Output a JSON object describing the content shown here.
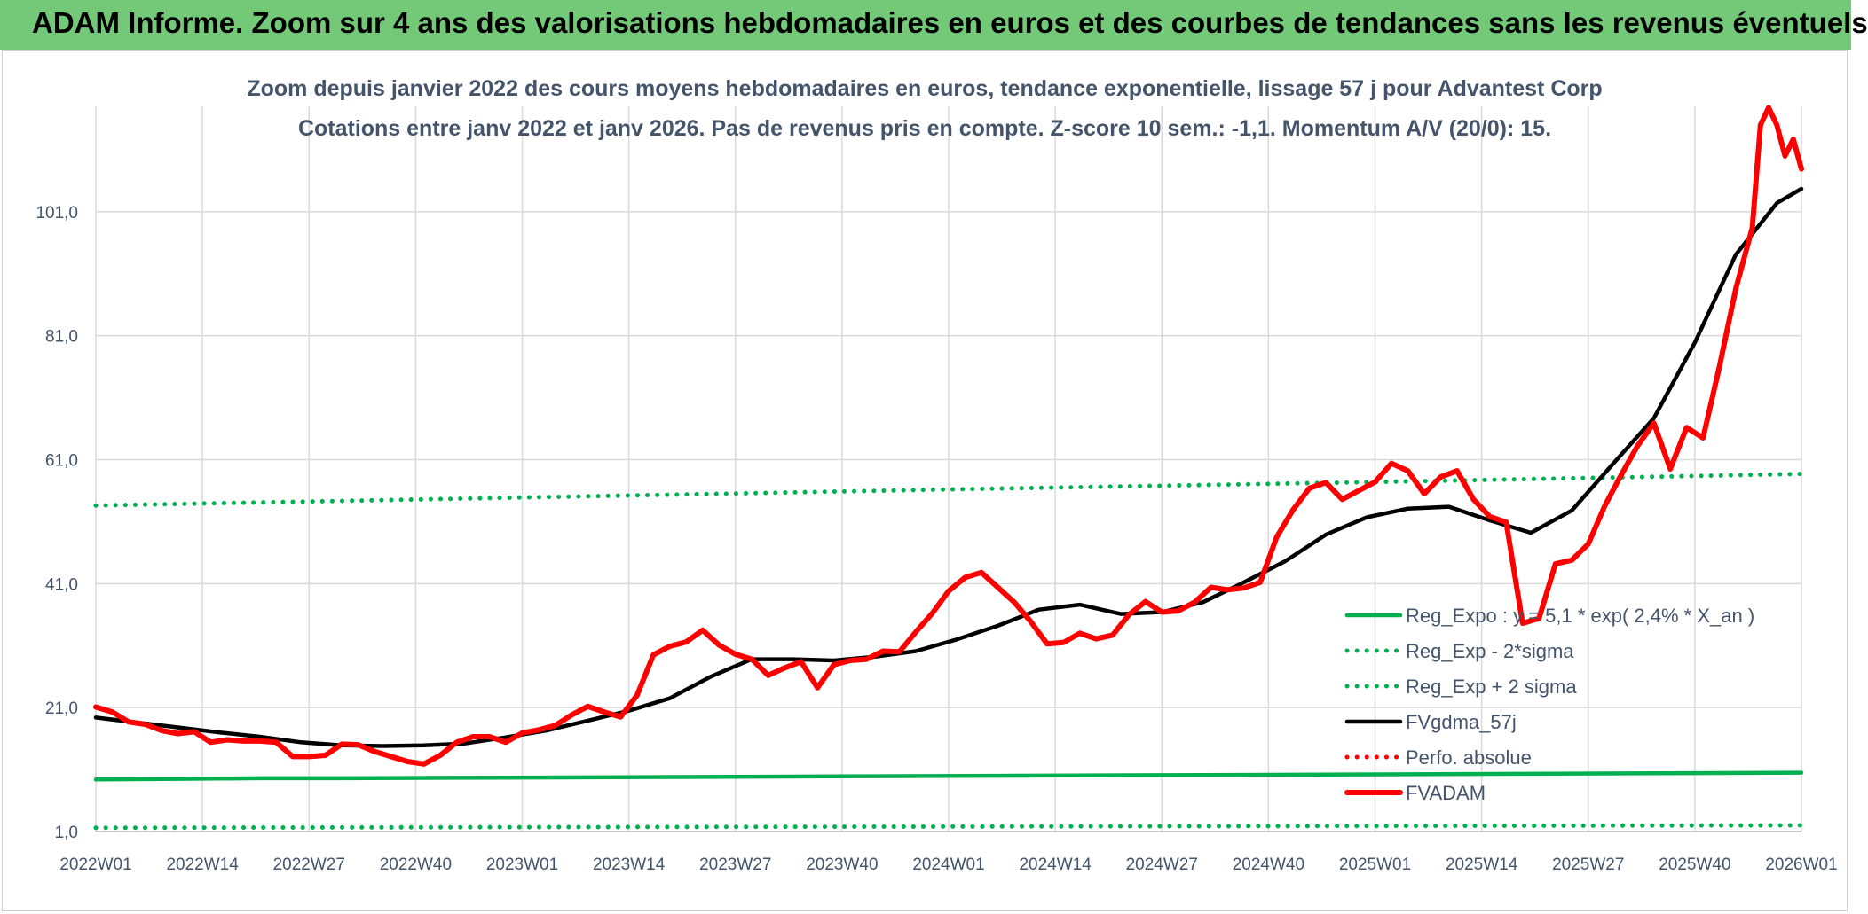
{
  "header": {
    "title": "ADAM Informe. Zoom sur 4 ans des valorisations hebdomadaires en euros et des courbes de tendances sans les revenus éventuels"
  },
  "chart_data": {
    "type": "line",
    "title": "Zoom depuis janvier 2022 des cours moyens hebdomadaires en euros, tendance exponentielle, lissage 57 j pour Advantest Corp",
    "subtitle": "Cotations entre janv 2022 et janv 2026. Pas de revenus pris en compte. Z-score 10 sem.: -1,1. Momentum A/V (20/0): 15.",
    "y_ticks": [
      "1,0",
      "21,0",
      "41,0",
      "61,0",
      "81,0",
      "101,0"
    ],
    "x_ticks": [
      "2022W01",
      "2022W14",
      "2022W27",
      "2022W40",
      "2023W01",
      "2023W14",
      "2023W27",
      "2023W40",
      "2024W01",
      "2024W14",
      "2024W27",
      "2024W40",
      "2025W01",
      "2025W14",
      "2025W27",
      "2025W40",
      "2026W01"
    ],
    "ylim": [
      1,
      118
    ],
    "grid": true,
    "legend_position": "lower-right",
    "series": [
      {
        "name": "Reg_Expo : y = 5,1 * exp( 2,4% *  X_an )",
        "color": "#00b050",
        "style": "solid",
        "points": [
          [
            0,
            9.4
          ],
          [
            10,
            9.5
          ],
          [
            20,
            9.6
          ],
          [
            30,
            9.6
          ],
          [
            50,
            9.7
          ],
          [
            70,
            9.8
          ],
          [
            90,
            9.9
          ],
          [
            110,
            10.0
          ],
          [
            130,
            10.1
          ],
          [
            150,
            10.2
          ],
          [
            170,
            10.3
          ],
          [
            190,
            10.4
          ],
          [
            208,
            10.5
          ]
        ]
      },
      {
        "name": "Reg_Exp - 2*sigma",
        "color": "#00b050",
        "style": "dotted",
        "points": [
          [
            0,
            1.6
          ],
          [
            52,
            1.7
          ],
          [
            104,
            1.8
          ],
          [
            156,
            1.9
          ],
          [
            208,
            2.0
          ]
        ]
      },
      {
        "name": "Reg_Exp + 2 sigma",
        "color": "#00b050",
        "style": "dotted",
        "points": [
          [
            0,
            53.6
          ],
          [
            52,
            54.9
          ],
          [
            104,
            56.2
          ],
          [
            156,
            57.4
          ],
          [
            208,
            58.7
          ]
        ]
      },
      {
        "name": "FVgdma_57j",
        "color": "#000000",
        "style": "solid",
        "points": [
          [
            0,
            19.4
          ],
          [
            5,
            18.6
          ],
          [
            10,
            17.8
          ],
          [
            15,
            17.0
          ],
          [
            20,
            16.3
          ],
          [
            25,
            15.4
          ],
          [
            30,
            14.9
          ],
          [
            35,
            14.8
          ],
          [
            40,
            14.9
          ],
          [
            45,
            15.2
          ],
          [
            50,
            16.2
          ],
          [
            55,
            17.3
          ],
          [
            60,
            18.9
          ],
          [
            65,
            20.5
          ],
          [
            70,
            22.5
          ],
          [
            75,
            26.0
          ],
          [
            80,
            28.8
          ],
          [
            85,
            28.8
          ],
          [
            90,
            28.6
          ],
          [
            95,
            29.2
          ],
          [
            100,
            30.1
          ],
          [
            105,
            32.0
          ],
          [
            110,
            34.2
          ],
          [
            115,
            36.8
          ],
          [
            120,
            37.6
          ],
          [
            125,
            36.1
          ],
          [
            130,
            36.4
          ],
          [
            135,
            38.0
          ],
          [
            140,
            41.2
          ],
          [
            145,
            44.6
          ],
          [
            150,
            48.9
          ],
          [
            155,
            51.7
          ],
          [
            160,
            53.1
          ],
          [
            165,
            53.4
          ],
          [
            170,
            51.2
          ],
          [
            175,
            49.2
          ],
          [
            180,
            52.8
          ],
          [
            185,
            60.3
          ],
          [
            190,
            67.7
          ],
          [
            195,
            79.9
          ],
          [
            200,
            94.1
          ],
          [
            205,
            102.4
          ],
          [
            208,
            104.7
          ]
        ]
      },
      {
        "name": "Perfo. absolue",
        "color": "#ff0000",
        "style": "dotted",
        "points": []
      },
      {
        "name": "FVADAM",
        "color": "#ff0000",
        "style": "solid",
        "points": [
          [
            0,
            21.1
          ],
          [
            2,
            20.3
          ],
          [
            4,
            18.7
          ],
          [
            6,
            18.3
          ],
          [
            8,
            17.3
          ],
          [
            10,
            16.8
          ],
          [
            12,
            17.1
          ],
          [
            14,
            15.4
          ],
          [
            16,
            15.8
          ],
          [
            18,
            15.6
          ],
          [
            20,
            15.6
          ],
          [
            22,
            15.4
          ],
          [
            24,
            13.1
          ],
          [
            26,
            13.1
          ],
          [
            28,
            13.3
          ],
          [
            30,
            15.1
          ],
          [
            32,
            15.0
          ],
          [
            34,
            13.9
          ],
          [
            36,
            13.1
          ],
          [
            38,
            12.3
          ],
          [
            40,
            11.9
          ],
          [
            42,
            13.3
          ],
          [
            44,
            15.4
          ],
          [
            46,
            16.3
          ],
          [
            48,
            16.3
          ],
          [
            50,
            15.4
          ],
          [
            52,
            16.9
          ],
          [
            54,
            17.4
          ],
          [
            56,
            18.1
          ],
          [
            58,
            19.8
          ],
          [
            60,
            21.2
          ],
          [
            62,
            20.3
          ],
          [
            64,
            19.5
          ],
          [
            66,
            23.0
          ],
          [
            68,
            29.5
          ],
          [
            70,
            30.9
          ],
          [
            72,
            31.6
          ],
          [
            74,
            33.5
          ],
          [
            76,
            31.1
          ],
          [
            78,
            29.6
          ],
          [
            80,
            28.8
          ],
          [
            82,
            26.2
          ],
          [
            84,
            27.4
          ],
          [
            86,
            28.4
          ],
          [
            88,
            24.2
          ],
          [
            90,
            27.9
          ],
          [
            92,
            28.6
          ],
          [
            94,
            28.8
          ],
          [
            96,
            30.1
          ],
          [
            98,
            30.0
          ],
          [
            100,
            33.2
          ],
          [
            102,
            36.2
          ],
          [
            104,
            39.8
          ],
          [
            106,
            42.0
          ],
          [
            108,
            42.8
          ],
          [
            110,
            40.4
          ],
          [
            112,
            38.0
          ],
          [
            114,
            34.9
          ],
          [
            116,
            31.3
          ],
          [
            118,
            31.5
          ],
          [
            120,
            33.0
          ],
          [
            122,
            32.1
          ],
          [
            124,
            32.7
          ],
          [
            126,
            36.0
          ],
          [
            128,
            38.1
          ],
          [
            130,
            36.4
          ],
          [
            132,
            36.6
          ],
          [
            134,
            38.0
          ],
          [
            136,
            40.4
          ],
          [
            138,
            40.0
          ],
          [
            140,
            40.3
          ],
          [
            142,
            41.2
          ],
          [
            144,
            48.5
          ],
          [
            146,
            52.9
          ],
          [
            148,
            56.4
          ],
          [
            150,
            57.3
          ],
          [
            152,
            54.6
          ],
          [
            154,
            56.0
          ],
          [
            156,
            57.4
          ],
          [
            158,
            60.4
          ],
          [
            160,
            59.2
          ],
          [
            162,
            55.5
          ],
          [
            164,
            58.2
          ],
          [
            166,
            59.2
          ],
          [
            168,
            54.6
          ],
          [
            170,
            51.8
          ],
          [
            172,
            50.9
          ],
          [
            174,
            34.6
          ],
          [
            176,
            35.4
          ],
          [
            178,
            44.2
          ],
          [
            180,
            44.8
          ],
          [
            182,
            47.4
          ],
          [
            184,
            53.5
          ],
          [
            186,
            58.5
          ],
          [
            188,
            63.2
          ],
          [
            190,
            66.9
          ],
          [
            192,
            59.5
          ],
          [
            194,
            66.2
          ],
          [
            196,
            64.5
          ],
          [
            198,
            76.0
          ],
          [
            200,
            88.6
          ],
          [
            202,
            98.4
          ],
          [
            203,
            115.0
          ],
          [
            204,
            117.8
          ],
          [
            205,
            115.0
          ],
          [
            206,
            110.0
          ],
          [
            207,
            112.7
          ],
          [
            208,
            107.9
          ]
        ]
      }
    ]
  }
}
